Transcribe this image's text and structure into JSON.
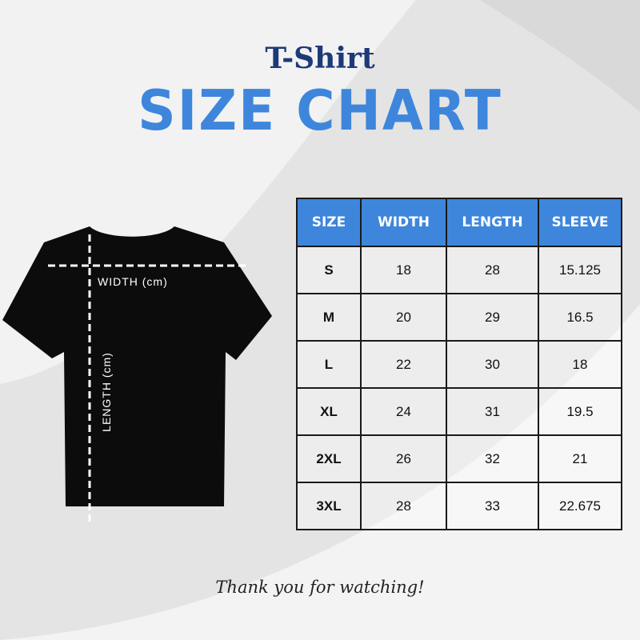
{
  "header": {
    "subtitle": "T-Shirt",
    "title": "SIZE CHART"
  },
  "colors": {
    "accent": "#3e86dc",
    "navy": "#1d3a78",
    "background": "#e4e4e4"
  },
  "illustration": {
    "icon": "tshirt-icon",
    "width_label": "WIDTH (cm)",
    "length_label": "LENGTH (cm)"
  },
  "table": {
    "headers": [
      "SIZE",
      "WIDTH",
      "LENGTH",
      "SLEEVE"
    ],
    "rows": [
      [
        "S",
        "18",
        "28",
        "15.125"
      ],
      [
        "M",
        "20",
        "29",
        "16.5"
      ],
      [
        "L",
        "22",
        "30",
        "18"
      ],
      [
        "XL",
        "24",
        "31",
        "19.5"
      ],
      [
        "2XL",
        "26",
        "32",
        "21"
      ],
      [
        "3XL",
        "28",
        "33",
        "22.675"
      ]
    ]
  },
  "footer": "Thank you for watching!"
}
